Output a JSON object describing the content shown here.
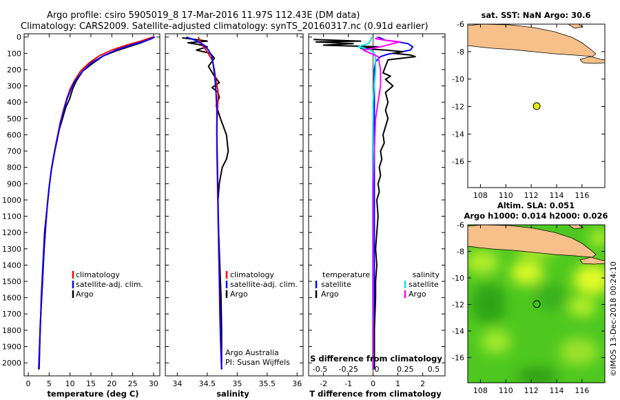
{
  "header": {
    "line1": "Argo profile: csiro 5905019_8 17-Mar-2016 11.97S 112.43E (DM data)",
    "line2": "Climatology: CARS2009. Satellite-adjusted climatology: synTS_20160317.nc (0.91d earlier)"
  },
  "colors": {
    "climatology": "#ff0000",
    "satellite": "#0000ff",
    "argo": "#000000",
    "sal_satellite": "#00e5ee",
    "sal_argo": "#ff00ff",
    "land": "#f7c08a",
    "sea": "#ffffff",
    "dot": "#e4f000"
  },
  "chart_data": [
    {
      "type": "line",
      "panel": "temperature",
      "xlabel": "temperature (deg C)",
      "xlim": [
        -1,
        31.5
      ],
      "xticks": [
        0,
        5,
        10,
        15,
        20,
        25,
        30
      ],
      "ylim": [
        2080,
        -20
      ],
      "yticks": [
        0,
        100,
        200,
        300,
        400,
        500,
        600,
        700,
        800,
        900,
        1000,
        1100,
        1200,
        1300,
        1400,
        1500,
        1600,
        1700,
        1800,
        1900,
        2000
      ],
      "legend": [
        "climatology",
        "satellite-adj. clim.",
        "Argo"
      ],
      "series": [
        {
          "name": "Argo",
          "color": "#000000",
          "x": [
            30.2,
            29.5,
            27,
            24,
            21,
            18,
            15.5,
            13,
            11.5,
            10.6,
            9.9,
            9,
            8.2,
            7.5,
            6.9,
            6.3,
            5.6,
            5.1,
            4.7,
            4.3,
            3.9,
            3.7,
            3.5,
            3.3,
            3.1,
            3.0,
            2.8,
            2.6
          ],
          "y": [
            0,
            10,
            35,
            60,
            85,
            115,
            160,
            210,
            270,
            320,
            380,
            430,
            500,
            560,
            620,
            700,
            800,
            900,
            1000,
            1100,
            1200,
            1300,
            1400,
            1500,
            1600,
            1700,
            1850,
            2040
          ]
        },
        {
          "name": "climatology",
          "color": "#ff0000",
          "x": [
            29.8,
            27,
            23.5,
            20,
            17,
            14.5,
            12.5,
            11,
            10,
            9.2,
            8.4,
            7.6,
            6.9,
            6.2,
            5.5,
            5.0,
            4.6,
            4.2,
            3.8,
            3.5,
            3.2,
            2.9,
            2.7,
            2.5
          ],
          "y": [
            0,
            25,
            50,
            80,
            115,
            160,
            210,
            270,
            320,
            380,
            450,
            530,
            620,
            720,
            820,
            920,
            1020,
            1150,
            1300,
            1450,
            1600,
            1750,
            1900,
            2040
          ]
        },
        {
          "name": "satellite-adj. clim.",
          "color": "#0000ff",
          "x": [
            30.3,
            28,
            24.5,
            21,
            18,
            15,
            13,
            11.2,
            10.2,
            9.3,
            8.5,
            7.7,
            7.0,
            6.2,
            5.5,
            5.0,
            4.6,
            4.2,
            3.8,
            3.5,
            3.2,
            2.9,
            2.7,
            2.5
          ],
          "y": [
            0,
            25,
            50,
            80,
            115,
            160,
            210,
            270,
            320,
            380,
            450,
            530,
            620,
            720,
            820,
            920,
            1020,
            1150,
            1300,
            1450,
            1600,
            1750,
            1900,
            2040
          ]
        }
      ]
    },
    {
      "type": "line",
      "panel": "salinity",
      "xlabel": "salinity",
      "xlim": [
        33.8,
        36.1
      ],
      "xticks": [
        34,
        34.5,
        35,
        35.5,
        36
      ],
      "ylim": [
        2080,
        -20
      ],
      "legend": [
        "climatology",
        "satellite-adj. clim.",
        "Argo"
      ],
      "annotation": [
        "Argo Australia",
        "PI: Susan Wijffels"
      ],
      "series": [
        {
          "name": "Argo",
          "color": "#000000",
          "x": [
            34.08,
            34.3,
            34.5,
            34.18,
            34.35,
            34.5,
            34.32,
            34.55,
            34.62,
            34.52,
            34.6,
            34.7,
            34.58,
            34.68,
            34.7,
            34.65,
            34.72,
            34.82,
            34.85,
            34.82,
            34.75,
            34.7,
            34.68,
            34.68,
            34.69,
            34.7,
            34.71,
            34.72,
            34.73,
            34.74,
            34.74
          ],
          "y": [
            5,
            15,
            25,
            35,
            45,
            60,
            80,
            100,
            130,
            180,
            230,
            280,
            310,
            340,
            370,
            420,
            500,
            600,
            700,
            750,
            800,
            900,
            1000,
            1100,
            1200,
            1300,
            1400,
            1500,
            1600,
            1800,
            2040
          ]
        },
        {
          "name": "climatology",
          "color": "#ff0000",
          "x": [
            34.35,
            34.4,
            34.5,
            34.58,
            34.62,
            34.65,
            34.68,
            34.68,
            34.67,
            34.66,
            34.66,
            34.67,
            34.68,
            34.69,
            34.7,
            34.71,
            34.72,
            34.73,
            34.74
          ],
          "y": [
            0,
            40,
            90,
            140,
            200,
            280,
            330,
            380,
            450,
            550,
            700,
            900,
            1100,
            1300,
            1500,
            1700,
            1850,
            1950,
            2040
          ]
        },
        {
          "name": "satellite-adj. clim.",
          "color": "#0000ff",
          "x": [
            34.15,
            34.3,
            34.45,
            34.52,
            34.58,
            34.6,
            34.62,
            34.64,
            34.65,
            34.66,
            34.66,
            34.67,
            34.68,
            34.69,
            34.7,
            34.71,
            34.72,
            34.73,
            34.74
          ],
          "y": [
            0,
            20,
            50,
            80,
            120,
            170,
            230,
            300,
            370,
            450,
            600,
            800,
            1000,
            1200,
            1400,
            1600,
            1800,
            1950,
            2040
          ]
        }
      ]
    },
    {
      "type": "line",
      "panel": "differences",
      "xlabel": "T difference from climatology",
      "xlabel2": "S difference from climatology",
      "xlim": [
        -2.6,
        2.9
      ],
      "xticks": [
        -2,
        -1,
        0,
        1,
        2
      ],
      "xticks2_values": [
        -0.5,
        -0.25,
        0,
        0.25,
        0.5
      ],
      "xticks2": [
        "-0.5",
        "-0.25",
        "0",
        "0.25",
        "0.5"
      ],
      "ylim": [
        2080,
        -20
      ],
      "legend_left_title": "temperature",
      "legend_left": [
        "satellite",
        "Argo"
      ],
      "legend_right_title": "salinity",
      "legend_right": [
        "satellite",
        "Argo"
      ],
      "series": [
        {
          "name": "T satellite",
          "color": "#0000ff",
          "x": [
            0.2,
            0.5,
            1.0,
            1.4,
            1.6,
            1.5,
            1.0,
            0.6,
            0.3,
            0.1,
            0.05,
            0.05,
            0.05,
            0.05,
            0.05
          ],
          "y": [
            0,
            20,
            30,
            40,
            60,
            80,
            95,
            105,
            120,
            150,
            200,
            500,
            1000,
            1500,
            2040
          ]
        },
        {
          "name": "T Argo",
          "color": "#000000",
          "x": [
            -2.4,
            -1.5,
            -0.5,
            -2.3,
            -0.8,
            -2.0,
            0.2,
            -0.5,
            0.5,
            1.2,
            0.8,
            1.5,
            1.7,
            0.6,
            0.5,
            0.4,
            0.7,
            0.5,
            0.8,
            0.5,
            0.6,
            0.5,
            0.6,
            0.5,
            0.4,
            0.45,
            0.3,
            0.35,
            0.25,
            0.3,
            0.2,
            0.25,
            0.15,
            0.2,
            0.15,
            0.1,
            0.15,
            0.1,
            0.1,
            0.05,
            0.05
          ],
          "y": [
            15,
            20,
            25,
            30,
            40,
            50,
            60,
            70,
            80,
            90,
            100,
            110,
            120,
            140,
            180,
            220,
            240,
            260,
            300,
            340,
            400,
            450,
            500,
            550,
            600,
            650,
            700,
            750,
            800,
            850,
            900,
            950,
            1000,
            1100,
            1200,
            1300,
            1400,
            1500,
            1600,
            1800,
            2040
          ]
        },
        {
          "name": "S satellite",
          "color": "#00e5ee",
          "x": [
            -0.05,
            -0.1,
            -0.2,
            -0.6,
            -0.1,
            0.05,
            0.1,
            0.1,
            0.05,
            0.0,
            0.0,
            -0.02,
            -0.02,
            -0.02,
            -0.02
          ],
          "y": [
            0,
            20,
            40,
            60,
            80,
            100,
            130,
            200,
            300,
            400,
            500,
            700,
            1000,
            1500,
            2040
          ]
        },
        {
          "name": "S Argo",
          "color": "#ff00ff",
          "x": [
            0.2,
            0.1,
            0.5,
            1.1,
            0.8,
            0.3,
            -0.4,
            0.2,
            0.3,
            0.3,
            0.2,
            0.1,
            0.05,
            0.0,
            0.0,
            0.0,
            0.0,
            0.0
          ],
          "y": [
            0,
            10,
            20,
            30,
            40,
            60,
            80,
            120,
            200,
            300,
            400,
            500,
            700,
            900,
            1100,
            1400,
            1700,
            2040
          ]
        }
      ]
    }
  ],
  "maps": {
    "sst": {
      "title": "sat. SST: NaN Argo: 30.6",
      "xticks": [
        "108",
        "110",
        "112",
        "114",
        "116"
      ],
      "yticks": [
        "-6",
        "-8",
        "-10",
        "-12",
        "-14",
        "-16"
      ],
      "xrange": [
        107,
        117.8
      ],
      "yrange": [
        -17.9,
        -6
      ],
      "argo_lon": 112.43,
      "argo_lat": -11.97
    },
    "sla": {
      "title1": "Altim. SLA: 0.051",
      "title2": "Argo h1000: 0.014 h2000: 0.026",
      "xticks": [
        "108",
        "110",
        "112",
        "114",
        "116"
      ],
      "yticks": [
        "-6",
        "-8",
        "-10",
        "-12",
        "-14",
        "-16"
      ],
      "xrange": [
        107,
        117.8
      ],
      "yrange": [
        -17.9,
        -6
      ],
      "argo_lon": 112.43,
      "argo_lat": -11.97
    }
  },
  "credit": "©IMOS 13-Dec-2018 00:24:10"
}
